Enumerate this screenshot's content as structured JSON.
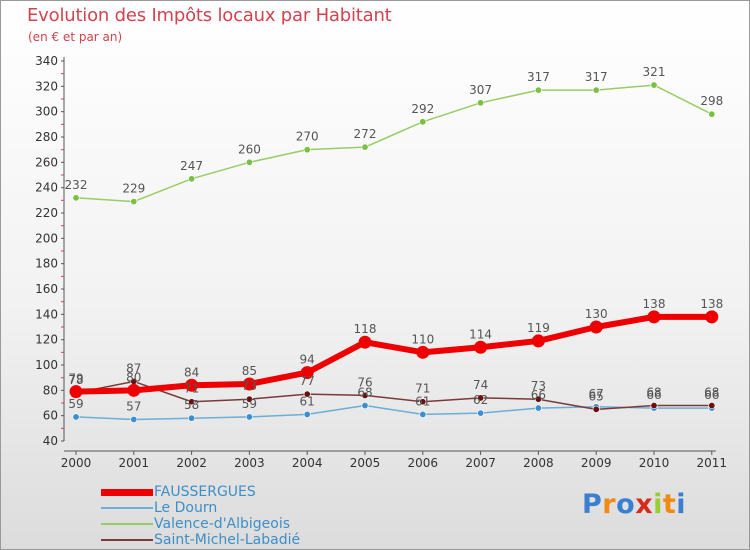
{
  "chart_data": {
    "type": "line",
    "title": "Evolution des Impôts locaux par Habitant",
    "subtitle": "(en € et par an)",
    "xlabel": "",
    "ylabel": "",
    "ylim": [
      40,
      340
    ],
    "ytick_step": 20,
    "grid": false,
    "legend_position": "bottom-left",
    "categories": [
      "2000",
      "2001",
      "2002",
      "2003",
      "2004",
      "2005",
      "2006",
      "2007",
      "2008",
      "2009",
      "2010",
      "2011"
    ],
    "series": [
      {
        "name": "Valence-d'Albigeois",
        "color": "#99cc66",
        "marker_color": "#7bc043",
        "values": [
          232,
          229,
          247,
          260,
          270,
          272,
          292,
          307,
          317,
          317,
          321,
          298
        ],
        "labels": [
          "232",
          "229",
          "247",
          "260",
          "270",
          "272",
          "292",
          "307",
          "317",
          "317",
          "321",
          "298"
        ]
      },
      {
        "name": "Le Dourn",
        "color": "#6baed6",
        "marker_color": "#3b8fd0",
        "values": [
          59,
          57,
          58,
          59,
          61,
          68,
          61,
          62,
          66,
          67,
          66,
          66
        ],
        "labels": [
          "59",
          "57",
          "58",
          "59",
          "61",
          "68",
          "61",
          "62",
          "66",
          "67",
          "66",
          "66"
        ]
      },
      {
        "name": "Saint-Michel-Labadié",
        "color": "#7a3a3a",
        "marker_color": "#6b1010",
        "values": [
          78,
          87,
          71,
          73,
          77,
          76,
          71,
          74,
          73,
          65,
          68,
          68
        ],
        "labels": [
          "78",
          "87",
          "71",
          "73",
          "77",
          "76",
          "71",
          "74",
          "73",
          "65",
          "68",
          "68"
        ]
      },
      {
        "name": "FAUSSERGUES",
        "color": "#ee0000",
        "marker_color": "#ee0000",
        "values": [
          79,
          80,
          84,
          85,
          94,
          118,
          110,
          114,
          119,
          130,
          138,
          138
        ],
        "labels": [
          "79",
          "80",
          "84",
          "85",
          "94",
          "118",
          "110",
          "114",
          "119",
          "130",
          "138",
          "138"
        ]
      }
    ],
    "legend": [
      "FAUSSERGUES",
      "Le Dourn",
      "Valence-d'Albigeois",
      "Saint-Michel-Labadié"
    ]
  },
  "legend_colors": {
    "FAUSSERGUES": "#ee0000",
    "Le Dourn": "#6baed6",
    "Valence-d'Albigeois": "#99cc66",
    "Saint-Michel-Labadié": "#7a3a3a"
  },
  "brand": {
    "text": "Proxiti",
    "letters": [
      "P",
      "r",
      "o",
      "x",
      "i",
      "t",
      "i"
    ],
    "letter_colors": [
      "#3a7fd0",
      "#f08a10",
      "#3a7fd0",
      "#d52b1e",
      "#9acd32",
      "#f08a10",
      "#3a7fd0"
    ]
  }
}
